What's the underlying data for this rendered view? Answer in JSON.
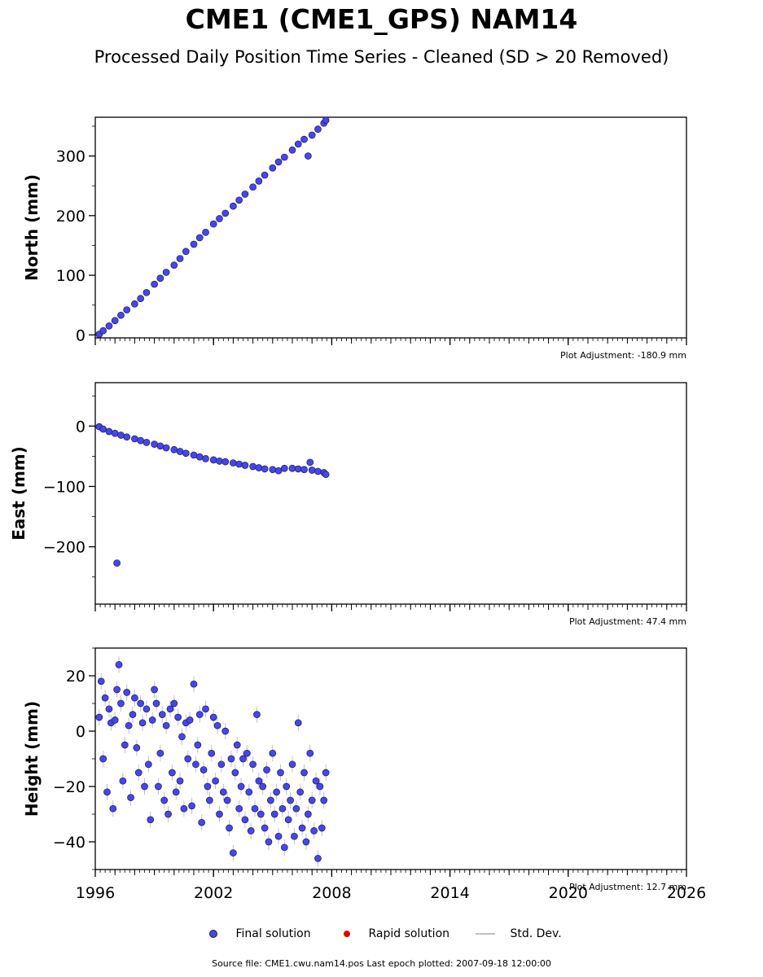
{
  "title": "CME1 (CME1_GPS) NAM14",
  "subtitle": "Processed Daily Position Time Series - Cleaned (SD > 20 Removed)",
  "legend": {
    "final_label": "Final solution",
    "rapid_label": "Rapid solution",
    "std_label": "Std. Dev.",
    "final_color": "#4646f0",
    "rapid_color": "#e00000",
    "std_color": "#c0c0c0"
  },
  "footer": "Source file: CME1.cwu.nam14.pos  Last epoch plotted: 2007-09-18 12:00:00",
  "chart_data": [
    {
      "type": "scatter",
      "ylabel": "North (mm)",
      "xlim": [
        1996,
        2026
      ],
      "ylim": [
        -5,
        365
      ],
      "xticks": [
        1996,
        2002,
        2008,
        2014,
        2020,
        2026
      ],
      "yticks": [
        0,
        100,
        200,
        300
      ],
      "ytick_labels": [
        "0",
        "100",
        "200",
        "300"
      ],
      "adjustment": "Plot Adjustment: -180.9 mm",
      "show_xlabels": false,
      "series": [
        {
          "x": [
            1996.2,
            1996.4,
            1996.7,
            1997.0,
            1997.3,
            1997.6,
            1998.0,
            1998.3,
            1998.6,
            1999.0,
            1999.3,
            1999.6,
            2000.0,
            2000.3,
            2000.6,
            2001.0,
            2001.3,
            2001.6,
            2002.0,
            2002.3,
            2002.6,
            2003.0,
            2003.3,
            2003.6,
            2004.0,
            2004.3,
            2004.6,
            2005.0,
            2005.3,
            2005.6,
            2006.0,
            2006.3,
            2006.6,
            2006.8,
            2007.0,
            2007.3,
            2007.6,
            2007.7
          ],
          "y": [
            1,
            7,
            15,
            24,
            33,
            42,
            52,
            61,
            71,
            85,
            95,
            105,
            117,
            128,
            140,
            152,
            163,
            172,
            186,
            195,
            204,
            216,
            226,
            236,
            248,
            258,
            268,
            280,
            290,
            298,
            310,
            320,
            328,
            300,
            335,
            345,
            355,
            360
          ]
        }
      ]
    },
    {
      "type": "scatter",
      "ylabel": "East (mm)",
      "xlim": [
        1996,
        2026
      ],
      "ylim": [
        -295,
        72
      ],
      "xticks": [
        1996,
        2002,
        2008,
        2014,
        2020,
        2026
      ],
      "yticks": [
        0,
        -100,
        -200
      ],
      "ytick_labels": [
        "0",
        "−100",
        "−200"
      ],
      "adjustment": "Plot Adjustment: 47.4 mm",
      "show_xlabels": false,
      "series": [
        {
          "x": [
            1996.2,
            1996.4,
            1996.7,
            1997.0,
            1997.1,
            1997.3,
            1997.6,
            1998.0,
            1998.3,
            1998.6,
            1999.0,
            1999.3,
            1999.6,
            2000.0,
            2000.3,
            2000.6,
            2001.0,
            2001.3,
            2001.6,
            2002.0,
            2002.3,
            2002.6,
            2003.0,
            2003.3,
            2003.6,
            2004.0,
            2004.3,
            2004.6,
            2005.0,
            2005.3,
            2005.6,
            2006.0,
            2006.3,
            2006.6,
            2006.9,
            2007.0,
            2007.3,
            2007.6,
            2007.7
          ],
          "y": [
            -1,
            -5,
            -9,
            -12,
            -227,
            -15,
            -18,
            -21,
            -24,
            -27,
            -30,
            -33,
            -36,
            -39,
            -42,
            -45,
            -48,
            -51,
            -54,
            -56,
            -58,
            -59,
            -61,
            -63,
            -65,
            -67,
            -69,
            -71,
            -72,
            -74,
            -70,
            -70,
            -71,
            -72,
            -60,
            -73,
            -75,
            -77,
            -80
          ]
        }
      ]
    },
    {
      "type": "scatter",
      "ylabel": "Height (mm)",
      "xlim": [
        1996,
        2026
      ],
      "ylim": [
        -50,
        30
      ],
      "xticks": [
        1996,
        2002,
        2008,
        2014,
        2020,
        2026
      ],
      "xtick_labels": [
        "1996",
        "2002",
        "2008",
        "2014",
        "2020",
        "2026"
      ],
      "yticks": [
        20,
        0,
        -20,
        -40
      ],
      "ytick_labels": [
        "20",
        "0",
        "−20",
        "−40"
      ],
      "adjustment": "Plot Adjustment: 12.7 mm",
      "show_xlabels": true,
      "series": [
        {
          "x": [
            1996.2,
            1996.3,
            1996.4,
            1996.5,
            1996.6,
            1996.7,
            1996.8,
            1996.9,
            1997.0,
            1997.1,
            1997.2,
            1997.3,
            1997.4,
            1997.5,
            1997.6,
            1997.7,
            1997.8,
            1997.9,
            1998.0,
            1998.1,
            1998.2,
            1998.3,
            1998.4,
            1998.5,
            1998.6,
            1998.7,
            1998.8,
            1998.9,
            1999.0,
            1999.1,
            1999.2,
            1999.3,
            1999.4,
            1999.5,
            1999.6,
            1999.7,
            1999.8,
            1999.9,
            2000.0,
            2000.1,
            2000.2,
            2000.3,
            2000.4,
            2000.5,
            2000.6,
            2000.7,
            2000.8,
            2000.9,
            2001.0,
            2001.1,
            2001.2,
            2001.3,
            2001.4,
            2001.5,
            2001.6,
            2001.7,
            2001.8,
            2001.9,
            2002.0,
            2002.1,
            2002.2,
            2002.3,
            2002.4,
            2002.5,
            2002.6,
            2002.7,
            2002.8,
            2002.9,
            2003.0,
            2003.1,
            2003.2,
            2003.3,
            2003.4,
            2003.5,
            2003.6,
            2003.7,
            2003.8,
            2003.9,
            2004.0,
            2004.1,
            2004.2,
            2004.3,
            2004.4,
            2004.5,
            2004.6,
            2004.7,
            2004.8,
            2004.9,
            2005.0,
            2005.1,
            2005.2,
            2005.3,
            2005.4,
            2005.5,
            2005.6,
            2005.7,
            2005.8,
            2005.9,
            2006.0,
            2006.1,
            2006.2,
            2006.3,
            2006.4,
            2006.5,
            2006.6,
            2006.7,
            2006.8,
            2006.9,
            2007.0,
            2007.1,
            2007.2,
            2007.3,
            2007.4,
            2007.5,
            2007.6,
            2007.7
          ],
          "y": [
            5,
            18,
            -10,
            12,
            -22,
            8,
            3,
            -28,
            4,
            15,
            24,
            10,
            -18,
            -5,
            14,
            2,
            -24,
            6,
            12,
            -6,
            -15,
            10,
            3,
            -20,
            8,
            -12,
            -32,
            4,
            15,
            10,
            -20,
            -8,
            6,
            -25,
            2,
            -30,
            8,
            -15,
            10,
            -22,
            5,
            -18,
            -2,
            -28,
            3,
            -10,
            4,
            -27,
            17,
            -12,
            -5,
            6,
            -33,
            -14,
            8,
            -20,
            -25,
            -8,
            5,
            -18,
            2,
            -30,
            -12,
            -22,
            0,
            -25,
            -35,
            -10,
            -44,
            -15,
            -5,
            -28,
            -20,
            -10,
            -32,
            -8,
            -22,
            -36,
            -12,
            -28,
            6,
            -18,
            -30,
            -20,
            -35,
            -14,
            -40,
            -25,
            -8,
            -30,
            -22,
            -38,
            -15,
            -28,
            -42,
            -20,
            -32,
            -25,
            -12,
            -38,
            -28,
            3,
            -22,
            -35,
            -15,
            -40,
            -30,
            -8,
            -25,
            -36,
            -18,
            -46,
            -20,
            -35,
            -25,
            -15
          ]
        }
      ]
    }
  ]
}
